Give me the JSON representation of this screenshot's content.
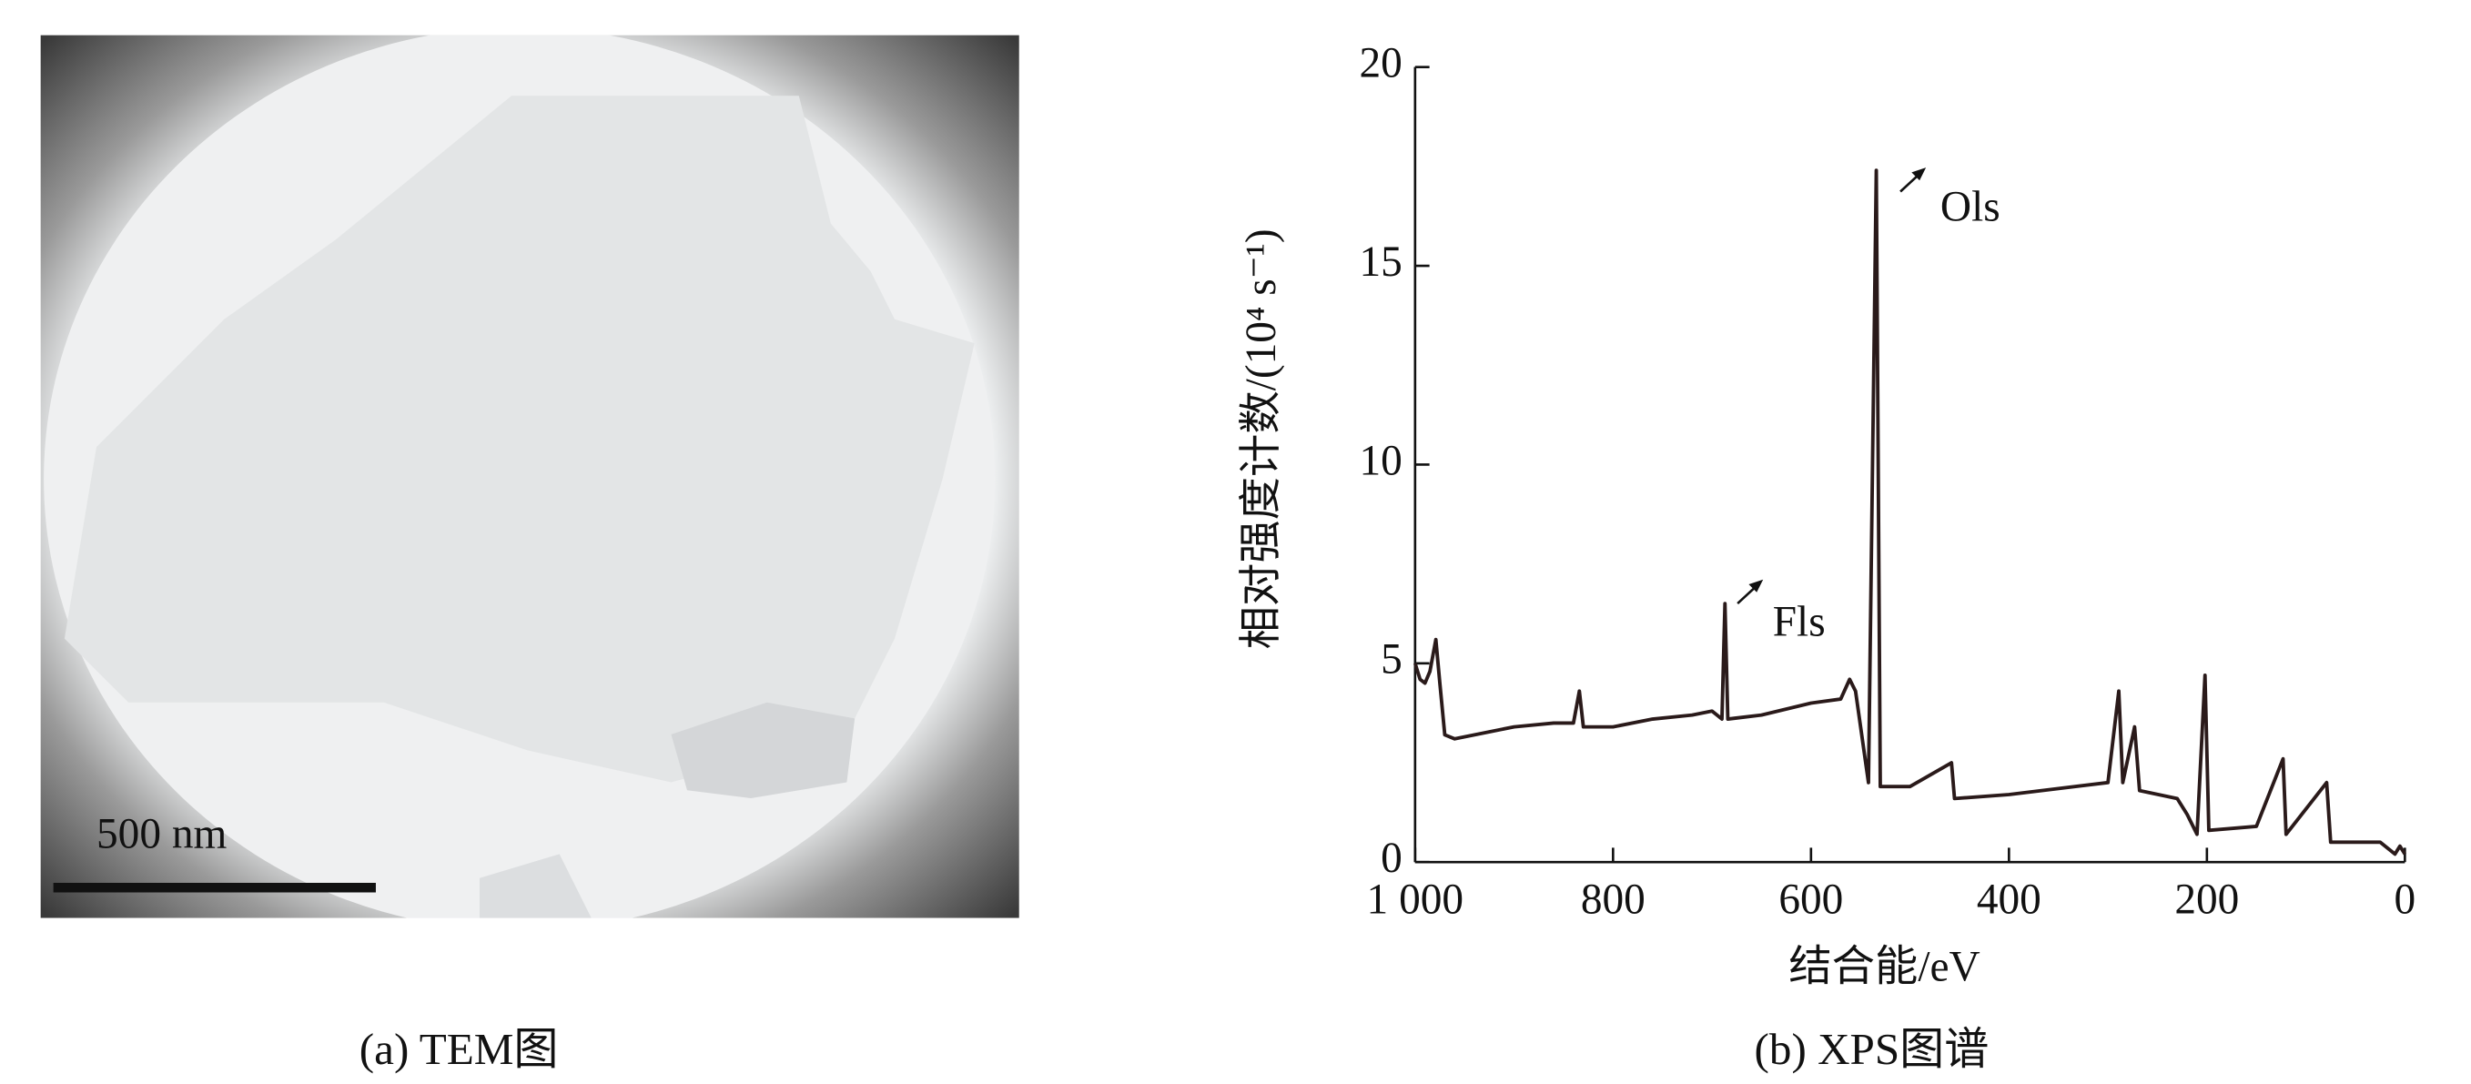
{
  "image": {
    "scale_bar": "500 nm",
    "caption": "(a) TEM图"
  },
  "chart_data": {
    "type": "line",
    "caption": "(b) XPS图谱",
    "xlabel": "结合能/eV",
    "ylabel": "相对强度计数/(10⁴ s⁻¹)",
    "annotations": [
      "Ols",
      "Fls"
    ],
    "xlim": [
      1000,
      0
    ],
    "xticks": [
      {
        "value": 1000,
        "label": "1 000"
      },
      800,
      600,
      400,
      200,
      0
    ],
    "ylim": [
      0,
      20
    ],
    "yticks": [
      0,
      5,
      10,
      15,
      20
    ],
    "color": "#2a1a1a",
    "x": [
      1000,
      995,
      990,
      985,
      979,
      975,
      970,
      960,
      940,
      900,
      860,
      840,
      834,
      830,
      800,
      760,
      720,
      700,
      690,
      687,
      684,
      650,
      600,
      570,
      561,
      555,
      542,
      534,
      530,
      500,
      458,
      455,
      400,
      300,
      289,
      285,
      273,
      268,
      230,
      220,
      210,
      202,
      198,
      150,
      123,
      120,
      79,
      75,
      30,
      25,
      10,
      5,
      0
    ],
    "values": [
      5.0,
      4.6,
      4.5,
      4.8,
      5.6,
      4.5,
      3.2,
      3.1,
      3.2,
      3.4,
      3.5,
      3.5,
      4.3,
      3.4,
      3.4,
      3.6,
      3.7,
      3.8,
      3.6,
      6.5,
      3.6,
      3.7,
      4.0,
      4.1,
      4.6,
      4.3,
      2.0,
      17.4,
      1.9,
      1.9,
      2.5,
      1.6,
      1.7,
      2.0,
      4.3,
      2.0,
      3.4,
      1.8,
      1.6,
      1.2,
      0.7,
      4.7,
      0.8,
      0.9,
      2.6,
      0.7,
      2.0,
      0.5,
      0.5,
      0.5,
      0.2,
      0.4,
      0.2
    ]
  }
}
